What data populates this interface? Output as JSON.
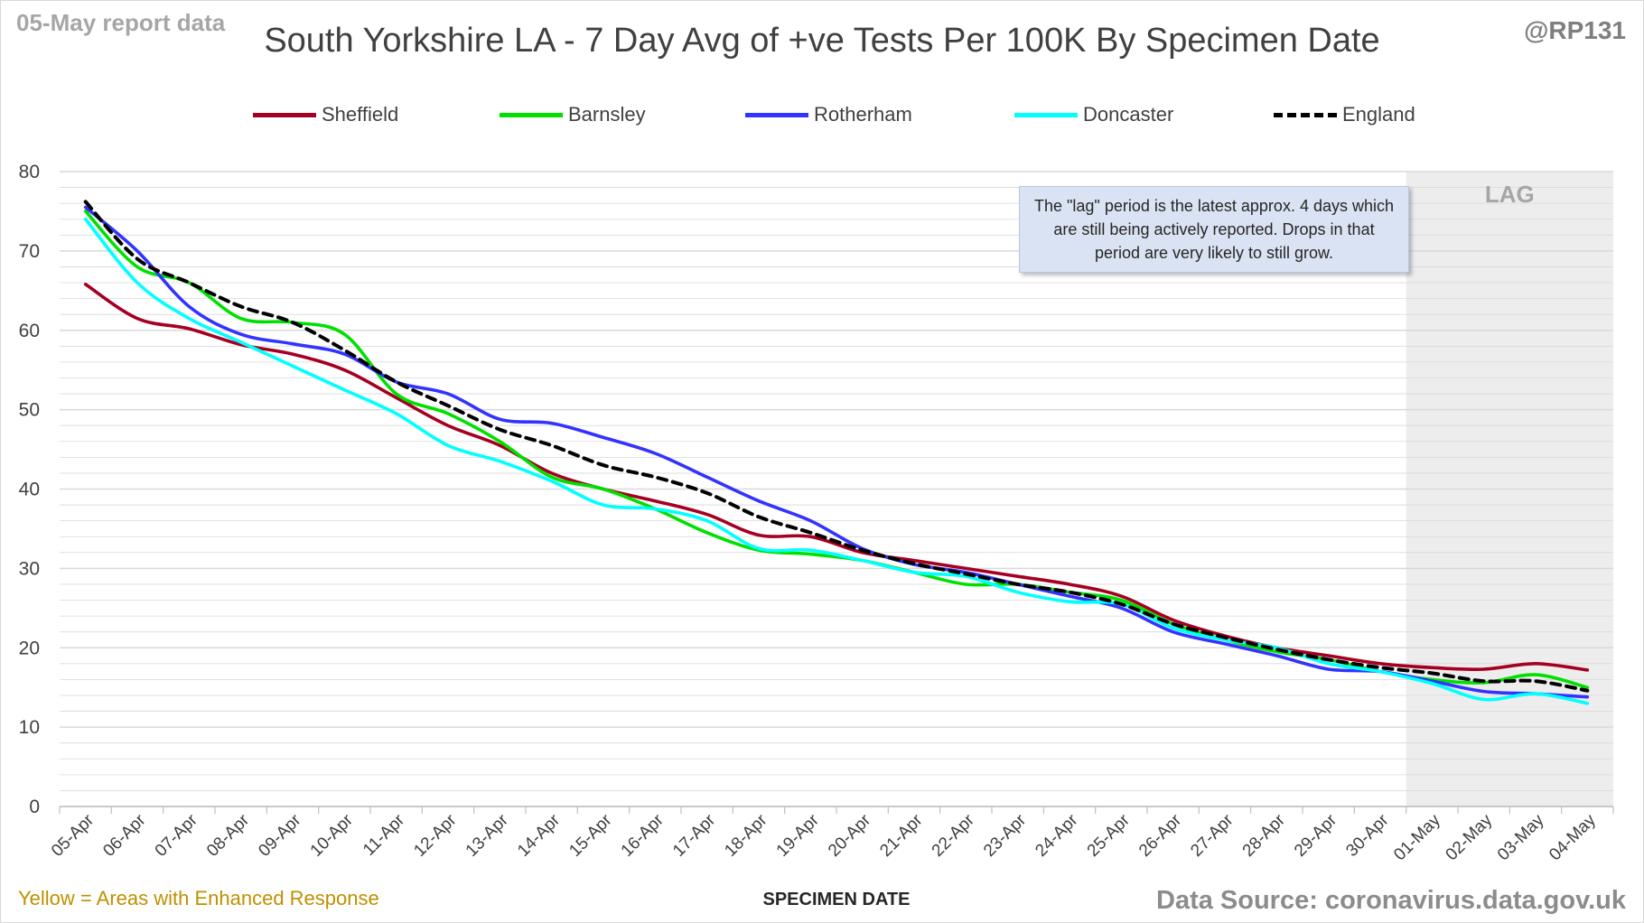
{
  "header": {
    "report_label": "05-May report data",
    "handle": "@RP131"
  },
  "footer": {
    "note": "Yellow = Areas with Enhanced Response",
    "source": "Data Source: coronavirus.data.gov.uk"
  },
  "annotation": {
    "text": "The \"lag\" period is the latest approx. 4 days which are still being actively reported. Drops in that period are very likely to still grow."
  },
  "colors": {
    "grid": "#d9d9d9",
    "lag_band": "#ededed",
    "axis_text": "#404040"
  },
  "chart_data": {
    "type": "line",
    "title": "South Yorkshire LA - 7 Day Avg of +ve Tests Per 100K By Specimen Date",
    "xlabel": "SPECIMEN DATE",
    "ylabel": "",
    "ylim": [
      0,
      80
    ],
    "yticks": [
      0,
      10,
      20,
      30,
      40,
      50,
      60,
      70,
      80
    ],
    "minor_grid_step": 2,
    "grid": true,
    "legend_position": "top",
    "categories": [
      "05-Apr",
      "06-Apr",
      "07-Apr",
      "08-Apr",
      "09-Apr",
      "10-Apr",
      "11-Apr",
      "12-Apr",
      "13-Apr",
      "14-Apr",
      "15-Apr",
      "16-Apr",
      "17-Apr",
      "18-Apr",
      "19-Apr",
      "20-Apr",
      "21-Apr",
      "22-Apr",
      "23-Apr",
      "24-Apr",
      "25-Apr",
      "26-Apr",
      "27-Apr",
      "28-Apr",
      "29-Apr",
      "30-Apr",
      "01-May",
      "02-May",
      "03-May",
      "04-May"
    ],
    "lag_region": {
      "label": "LAG",
      "start": "01-May",
      "end": "04-May"
    },
    "series": [
      {
        "name": "Sheffield",
        "color": "#a50021",
        "dashed": false,
        "values": [
          65.8,
          61.5,
          60.2,
          58.2,
          57.0,
          55.0,
          51.5,
          48.0,
          45.5,
          42.0,
          40.0,
          38.5,
          36.8,
          34.2,
          34.0,
          32.0,
          31.0,
          30.0,
          29.0,
          28.0,
          26.5,
          23.5,
          21.5,
          20.0,
          19.0,
          18.0,
          17.5,
          17.3,
          18.0,
          17.2
        ]
      },
      {
        "name": "Barnsley",
        "color": "#00e000",
        "dashed": false,
        "values": [
          75.0,
          68.0,
          66.0,
          61.5,
          61.0,
          59.5,
          52.0,
          49.5,
          46.0,
          41.5,
          40.0,
          37.5,
          34.5,
          32.3,
          31.8,
          31.0,
          29.5,
          28.0,
          28.0,
          27.0,
          26.0,
          23.0,
          21.0,
          19.5,
          18.5,
          17.0,
          16.0,
          15.6,
          16.6,
          15.0
        ]
      },
      {
        "name": "Rotherham",
        "color": "#3333ff",
        "dashed": false,
        "values": [
          75.5,
          70.0,
          63.0,
          59.5,
          58.3,
          57.0,
          53.5,
          52.0,
          48.8,
          48.3,
          46.5,
          44.5,
          41.5,
          38.5,
          36.0,
          32.5,
          30.5,
          29.5,
          28.0,
          26.5,
          25.0,
          22.0,
          20.5,
          19.0,
          17.3,
          17.0,
          15.8,
          14.5,
          14.2,
          13.8
        ]
      },
      {
        "name": "Doncaster",
        "color": "#00ffff",
        "dashed": false,
        "values": [
          74.0,
          66.0,
          61.5,
          58.5,
          55.5,
          52.5,
          49.5,
          45.5,
          43.5,
          41.0,
          38.0,
          37.5,
          36.0,
          32.5,
          32.3,
          31.0,
          29.5,
          29.0,
          27.0,
          25.8,
          25.5,
          22.5,
          21.0,
          20.0,
          18.0,
          17.0,
          15.5,
          13.5,
          14.2,
          13.0
        ]
      },
      {
        "name": "England",
        "color": "#000000",
        "dashed": true,
        "values": [
          76.2,
          69.0,
          66.0,
          63.0,
          61.0,
          57.5,
          53.5,
          50.5,
          47.5,
          45.5,
          43.0,
          41.5,
          39.5,
          36.5,
          34.5,
          32.3,
          30.6,
          29.3,
          28.0,
          27.0,
          25.5,
          23.0,
          21.3,
          19.8,
          18.5,
          17.5,
          16.8,
          15.8,
          15.8,
          14.6
        ]
      }
    ]
  }
}
